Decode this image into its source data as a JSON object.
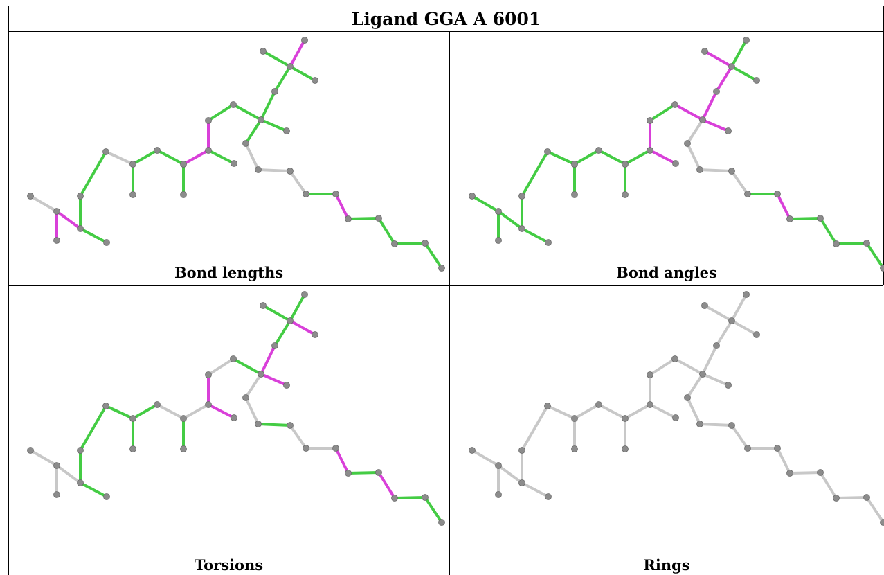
{
  "title": "Ligand GGA A 6001",
  "captions": [
    "Bond lengths",
    "Bond angles",
    "Torsions",
    "Rings"
  ],
  "colors": {
    "atom": "#8c8c8c",
    "neutral_bond": "#c8c8c8",
    "green_bond": "#44cc44",
    "magenta_bond": "#d940d9"
  },
  "panels": [
    {
      "colors": [
        "n",
        "m",
        "m",
        "g",
        "g",
        "g",
        "n",
        "g",
        "g",
        "g",
        "g",
        "m",
        "g",
        "m",
        "g",
        "g",
        "g",
        "g",
        "g",
        "g",
        "m",
        "g",
        "g",
        "n",
        "n",
        "n",
        "g",
        "m",
        "g",
        "g",
        "g",
        "g",
        "g",
        "g",
        "g"
      ]
    },
    {
      "colors": [
        "g",
        "g",
        "g",
        "g",
        "g",
        "g",
        "g",
        "g",
        "g",
        "g",
        "g",
        "g",
        "m",
        "m",
        "g",
        "m",
        "m",
        "m",
        "m",
        "m",
        "g",
        "g",
        "n",
        "n",
        "n",
        "n",
        "g",
        "m",
        "g",
        "g",
        "g",
        "g",
        "g",
        "g",
        "g"
      ]
    },
    {
      "colors": [
        "n",
        "n",
        "n",
        "g",
        "g",
        "g",
        "g",
        "g",
        "g",
        "n",
        "g",
        "n",
        "m",
        "m",
        "n",
        "g",
        "m",
        "m",
        "g",
        "g",
        "g",
        "m",
        "n",
        "n",
        "g",
        "n",
        "n",
        "m",
        "g",
        "m",
        "g",
        "g",
        "g",
        "g",
        "n"
      ]
    },
    {
      "colors": [
        "n",
        "n",
        "n",
        "n",
        "n",
        "n",
        "n",
        "n",
        "n",
        "n",
        "n",
        "n",
        "n",
        "n",
        "n",
        "n",
        "n",
        "n",
        "n",
        "n",
        "n",
        "n",
        "n",
        "n",
        "n",
        "n",
        "n",
        "n",
        "n",
        "n",
        "n",
        "n",
        "n",
        "n",
        "n"
      ]
    }
  ]
}
